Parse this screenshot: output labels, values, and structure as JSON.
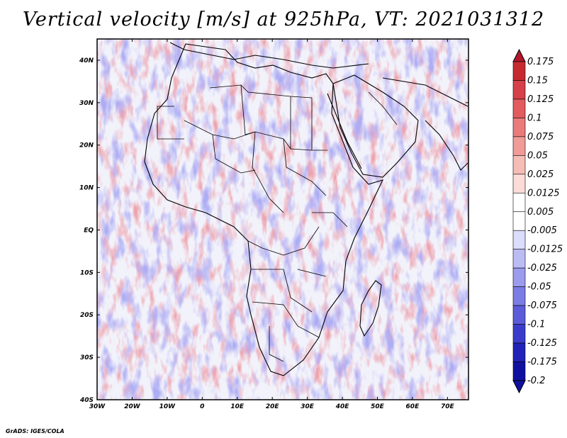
{
  "title": "Vertical velocity [m/s] at 925hPa, VT: 2021031312",
  "credit": "GrADS: IGES/COLA",
  "map": {
    "lat_labels": [
      "40N",
      "30N",
      "20N",
      "10N",
      "EQ",
      "10S",
      "20S",
      "30S",
      "40S"
    ],
    "lon_labels": [
      "30W",
      "20W",
      "10W",
      "0",
      "10E",
      "20E",
      "30E",
      "40E",
      "50E",
      "60E",
      "70E"
    ],
    "lon_range": [
      -30,
      76
    ],
    "lat_range": [
      -40,
      45
    ]
  },
  "colorbar": {
    "labels": [
      "0.175",
      "0.15",
      "0.125",
      "0.1",
      "0.075",
      "0.05",
      "0.025",
      "0.0125",
      "0.005",
      "-0.005",
      "-0.0125",
      "-0.025",
      "-0.05",
      "-0.075",
      "-0.1",
      "-0.125",
      "-0.175",
      "-0.2"
    ],
    "colors": [
      "#b2182b",
      "#c62a30",
      "#d6404a",
      "#e25b5f",
      "#ea7b7b",
      "#f19b98",
      "#f6bcb6",
      "#fbdcd7",
      "#ffffff",
      "#ffffff",
      "#dcdcfb",
      "#bcbcf5",
      "#9c9cee",
      "#7c7ce5",
      "#5c5cda",
      "#3c3ccc",
      "#2222b8",
      "#1010a0",
      "#1010a0"
    ]
  }
}
